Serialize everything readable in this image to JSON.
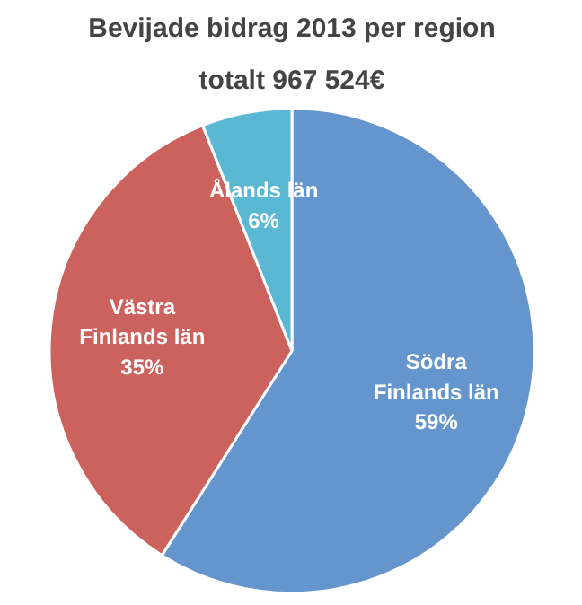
{
  "chart_data": {
    "type": "pie",
    "title": "Bevijade bidrag 2013 per region",
    "subtitle": "totalt 967 524€",
    "categories": [
      "Södra Finlands län",
      "Västra Finlands län",
      "Ålands län"
    ],
    "values": [
      59,
      35,
      6
    ],
    "colors": [
      "#6495cd",
      "#cc625e",
      "#5bb8d3"
    ],
    "value_labels": [
      "59%",
      "35%",
      "6%"
    ]
  }
}
